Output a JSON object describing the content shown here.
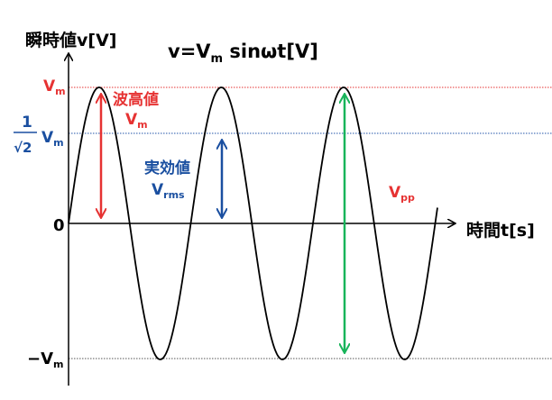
{
  "y_axis_label": "瞬時値v[V]",
  "x_axis_label": "時間t[s]",
  "formula": {
    "lhs": "v=V",
    "sub": "m",
    "rhs": " sinωt[V]"
  },
  "vm_label": {
    "main": "V",
    "sub": "m"
  },
  "root2_label": {
    "numerator": "1",
    "denominator": "√2",
    "main": "V",
    "sub": "m"
  },
  "zero_label": "0",
  "neg_vm_label": {
    "main": "−V",
    "sub": "m"
  },
  "peak_annotation": {
    "title": "波高値",
    "main": "V",
    "sub": "m"
  },
  "rms_annotation": {
    "title": "実効値",
    "main": "V",
    "sub": "rms"
  },
  "pp_annotation": {
    "main": "V",
    "sub": "pp"
  },
  "colors": {
    "peak": "#e63232",
    "rms": "#1a4fa0",
    "pp": "#18b45a",
    "vm_line": "#e63232",
    "rms_line": "#2255aa",
    "neg_line": "#555555",
    "curve": "#000000"
  }
}
